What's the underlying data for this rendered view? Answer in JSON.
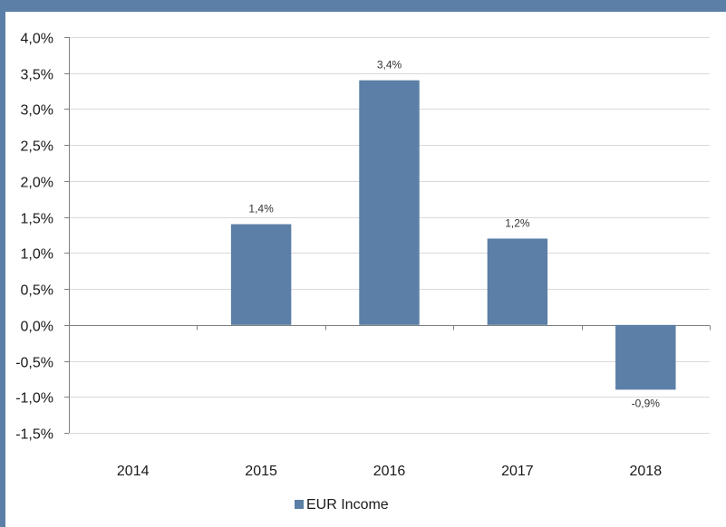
{
  "colors": {
    "series": "#5b7fa6",
    "frame": "#5b7fa6",
    "grid": "#d9d9d9",
    "axis": "#808080"
  },
  "chart_data": {
    "type": "bar",
    "categories": [
      "2014",
      "2015",
      "2016",
      "2017",
      "2018"
    ],
    "series": [
      {
        "name": "EUR Income",
        "values": [
          null,
          1.4,
          3.4,
          1.2,
          -0.9
        ],
        "labels": [
          "",
          "1,4%",
          "3,4%",
          "1,2%",
          "-0,9%"
        ]
      }
    ],
    "yticks": [
      "4,0%",
      "3,5%",
      "3,0%",
      "2,5%",
      "2,0%",
      "1,5%",
      "1,0%",
      "0,5%",
      "0,0%",
      "-0,5%",
      "-1,0%",
      "-1,5%"
    ],
    "ylim": [
      -1.5,
      4.0
    ],
    "ystep": 0.5,
    "grid": true,
    "legend_position": "bottom",
    "title": "",
    "xlabel": "",
    "ylabel": ""
  }
}
